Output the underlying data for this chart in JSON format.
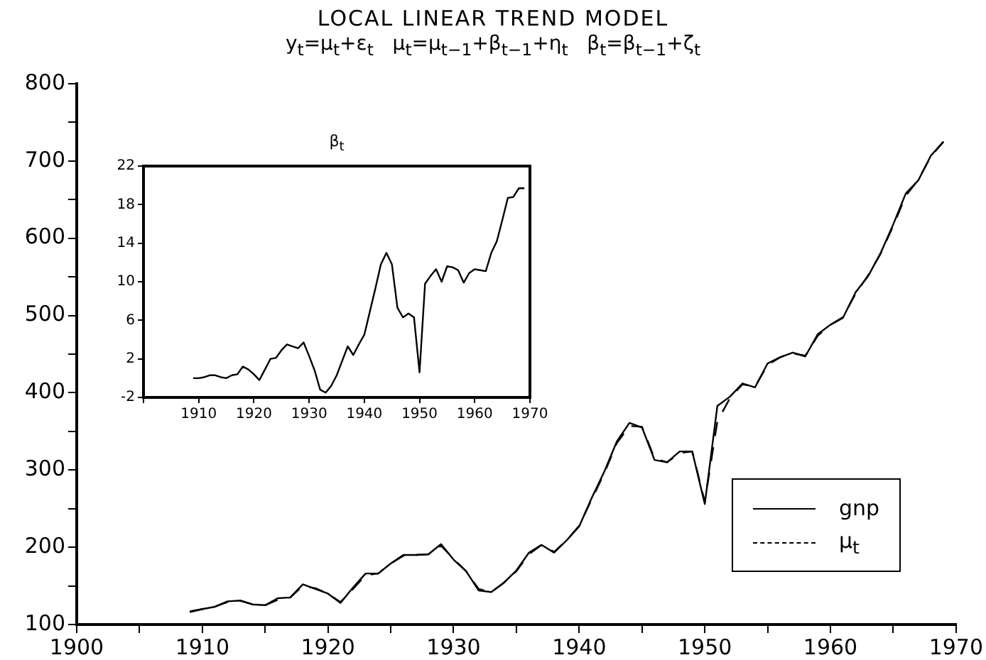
{
  "chart_data": [
    {
      "type": "line",
      "title": "LOCAL LINEAR TREND MODEL",
      "subtitle": "y$_{t}$=μ$_{t}$+ε$_{t}$   μ$_{t}$=μ$_{t−1}$+β$_{t−1}$+η$_{t}$   β$_{t}$=β$_{t−1}$+ζ$_{t}$",
      "x": [
        1909,
        1910,
        1911,
        1912,
        1913,
        1914,
        1915,
        1916,
        1917,
        1918,
        1919,
        1920,
        1921,
        1922,
        1923,
        1924,
        1925,
        1926,
        1927,
        1928,
        1929,
        1930,
        1931,
        1932,
        1933,
        1934,
        1935,
        1936,
        1937,
        1938,
        1939,
        1940,
        1941,
        1942,
        1943,
        1944,
        1945,
        1946,
        1947,
        1948,
        1949,
        1950,
        1951,
        1952,
        1953,
        1954,
        1955,
        1956,
        1957,
        1958,
        1959,
        1960,
        1961,
        1962,
        1963,
        1964,
        1965,
        1966,
        1967,
        1968,
        1969
      ],
      "series": [
        {
          "name": "gnp",
          "color": "#000000",
          "line_style": "solid",
          "values": [
            117,
            120,
            123,
            130,
            131,
            126,
            125,
            134,
            135,
            152,
            146,
            140,
            128,
            148,
            166,
            166,
            179,
            190,
            190,
            191,
            204,
            184,
            169,
            144,
            142,
            154,
            170,
            193,
            203,
            193,
            209,
            227,
            264,
            298,
            337,
            361,
            355,
            313,
            310,
            324,
            324,
            256,
            383,
            395,
            412,
            407,
            438,
            446,
            452,
            447,
            476,
            488,
            497,
            530,
            551,
            581,
            618,
            658,
            675,
            707,
            725
          ]
        },
        {
          "name": "μ$_{t}$",
          "color": "#000000",
          "line_style": "dashed",
          "values": [
            116,
            120,
            123,
            129,
            131,
            126,
            125,
            132,
            135,
            150,
            147,
            140,
            129,
            146,
            164,
            166,
            179,
            189,
            190,
            191,
            202,
            185,
            169,
            146,
            142,
            154,
            169,
            191,
            203,
            194,
            209,
            228,
            262,
            296,
            335,
            357,
            356,
            315,
            310,
            322,
            324,
            259,
            363,
            393,
            411,
            408,
            436,
            446,
            451,
            448,
            474,
            488,
            498,
            528,
            552,
            580,
            616,
            655,
            676,
            706,
            725
          ]
        }
      ],
      "xlim": [
        1900,
        1970
      ],
      "xticks": [
        1900,
        {
          "value": 1905,
          "label": null
        },
        1910,
        {
          "value": 1915,
          "label": null
        },
        1920,
        {
          "value": 1925,
          "label": null
        },
        1930,
        {
          "value": 1935,
          "label": null
        },
        1940,
        {
          "value": 1945,
          "label": null
        },
        1950,
        {
          "value": 1955,
          "label": null
        },
        1960,
        {
          "value": 1965,
          "label": null
        },
        1970
      ],
      "ylim": [
        100,
        800
      ],
      "yticks": [
        100,
        {
          "value": 150,
          "label": null
        },
        200,
        {
          "value": 250,
          "label": null
        },
        300,
        {
          "value": 350,
          "label": null
        },
        400,
        {
          "value": 450,
          "label": null
        },
        500,
        {
          "value": 550,
          "label": null
        },
        600,
        {
          "value": 650,
          "label": null
        },
        700,
        {
          "value": 750,
          "label": null
        },
        800
      ],
      "legend": "bottom right",
      "grid": false,
      "marker": "none"
    },
    {
      "type": "line",
      "title": "β$_{t}$",
      "color": "#000000",
      "x": [
        1909,
        1910,
        1911,
        1912,
        1913,
        1914,
        1915,
        1916,
        1917,
        1918,
        1919,
        1920,
        1921,
        1922,
        1923,
        1924,
        1925,
        1926,
        1927,
        1928,
        1929,
        1930,
        1931,
        1932,
        1933,
        1934,
        1935,
        1936,
        1937,
        1938,
        1939,
        1940,
        1941,
        1942,
        1943,
        1944,
        1945,
        1946,
        1947,
        1948,
        1949,
        1950,
        1951,
        1952,
        1953,
        1954,
        1955,
        1956,
        1957,
        1958,
        1959,
        1960,
        1961,
        1962,
        1963,
        1964,
        1965,
        1966,
        1967,
        1968,
        1969
      ],
      "values": [
        0.0,
        0.0,
        0.1,
        0.3,
        0.3,
        0.1,
        0.0,
        0.3,
        0.4,
        1.2,
        0.9,
        0.4,
        -0.2,
        0.9,
        2.0,
        2.1,
        2.9,
        3.5,
        3.3,
        3.1,
        3.7,
        2.3,
        0.8,
        -1.2,
        -1.5,
        -0.8,
        0.3,
        1.8,
        3.3,
        2.4,
        3.5,
        4.5,
        6.9,
        9.3,
        11.8,
        13.0,
        11.8,
        7.3,
        6.3,
        6.7,
        6.3,
        0.6,
        9.8,
        10.6,
        11.3,
        10.0,
        11.6,
        11.5,
        11.2,
        9.9,
        10.9,
        11.3,
        11.2,
        11.1,
        13.0,
        14.2,
        16.4,
        18.7,
        18.8,
        19.7,
        19.7
      ],
      "xlim": [
        1900,
        1970
      ],
      "xticks": [
        {
          "value": 1900,
          "label": null
        },
        1910,
        1920,
        1930,
        1940,
        1950,
        1960,
        1970
      ],
      "ylim": [
        -2,
        22
      ],
      "yticks": [
        -2,
        2,
        6,
        10,
        14,
        18,
        22
      ],
      "legend": false,
      "grid": false,
      "marker": "none"
    }
  ]
}
